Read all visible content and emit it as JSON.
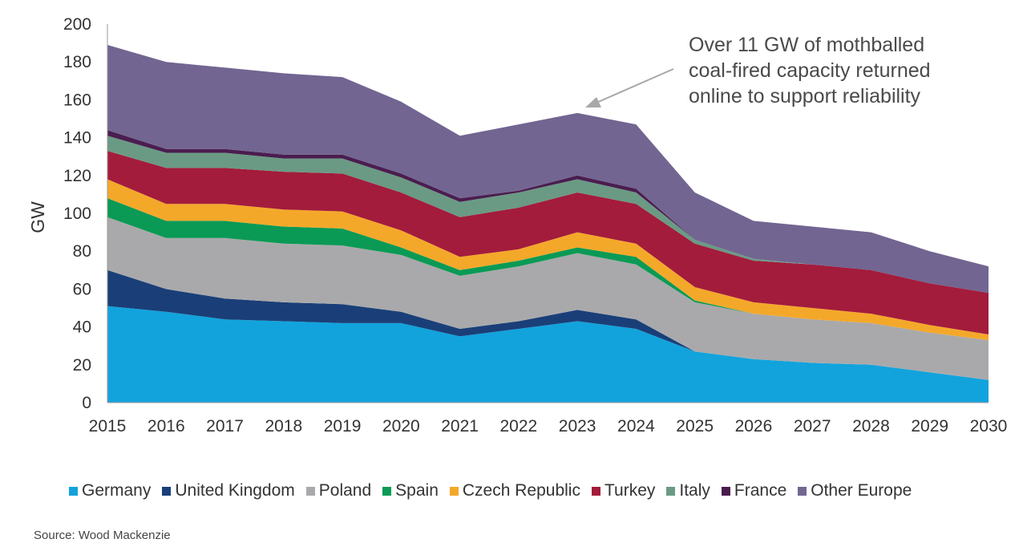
{
  "chart_data": {
    "type": "area",
    "stacked": true,
    "ylabel": "GW",
    "xlabel": "",
    "title": "",
    "ylim": [
      0,
      200
    ],
    "yticks": [
      "0",
      "20",
      "40",
      "60",
      "80",
      "100",
      "120",
      "140",
      "160",
      "180",
      "200"
    ],
    "categories": [
      "2015",
      "2016",
      "2017",
      "2018",
      "2019",
      "2020",
      "2021",
      "2022",
      "2023",
      "2024",
      "2025",
      "2026",
      "2027",
      "2028",
      "2029",
      "2030"
    ],
    "series": [
      {
        "name": "Germany",
        "color": "#12a3dc",
        "values": [
          51,
          48,
          44,
          43,
          42,
          42,
          35,
          39,
          43,
          39,
          27,
          23,
          21,
          20,
          16,
          12
        ]
      },
      {
        "name": "United Kingdom",
        "color": "#1a3f78",
        "values": [
          19,
          12,
          11,
          10,
          10,
          6,
          4,
          4,
          6,
          5,
          0,
          0,
          0,
          0,
          0,
          0
        ]
      },
      {
        "name": "Poland",
        "color": "#a9a9ab",
        "values": [
          28,
          27,
          32,
          31,
          31,
          30,
          28,
          29,
          30,
          29,
          26,
          24,
          23,
          22,
          21,
          21
        ]
      },
      {
        "name": "Spain",
        "color": "#0a9a55",
        "values": [
          10,
          9,
          9,
          9,
          9,
          4,
          3,
          3,
          3,
          4,
          1,
          0,
          0,
          0,
          0,
          0
        ]
      },
      {
        "name": "Czech Republic",
        "color": "#f4a82a",
        "values": [
          10,
          9,
          9,
          9,
          9,
          9,
          7,
          6,
          8,
          7,
          7,
          6,
          6,
          5,
          4,
          3
        ]
      },
      {
        "name": "Turkey",
        "color": "#a31c3c",
        "values": [
          15,
          19,
          19,
          20,
          20,
          20,
          21,
          22,
          21,
          21,
          23,
          22,
          23,
          23,
          22,
          22
        ]
      },
      {
        "name": "Italy",
        "color": "#6a9a84",
        "values": [
          8,
          8,
          8,
          7,
          8,
          8,
          8,
          8,
          7,
          6,
          2,
          1,
          0,
          0,
          0,
          0
        ]
      },
      {
        "name": "France",
        "color": "#4a1d4f",
        "values": [
          3,
          2,
          2,
          2,
          2,
          2,
          2,
          1,
          2,
          2,
          0,
          0,
          0,
          0,
          0,
          0
        ]
      },
      {
        "name": "Other Europe",
        "color": "#726591",
        "values": [
          45,
          46,
          43,
          43,
          41,
          38,
          33,
          35,
          33,
          34,
          25,
          20,
          20,
          20,
          17,
          14
        ]
      }
    ],
    "annotation": {
      "lines": [
        "Over 11 GW of mothballed",
        "coal-fired capacity returned",
        "online to support reliability"
      ],
      "arrow_color": "#a8a8a8"
    },
    "legend_position": "bottom",
    "grid": false
  },
  "source_text": "Source: Wood Mackenzie"
}
